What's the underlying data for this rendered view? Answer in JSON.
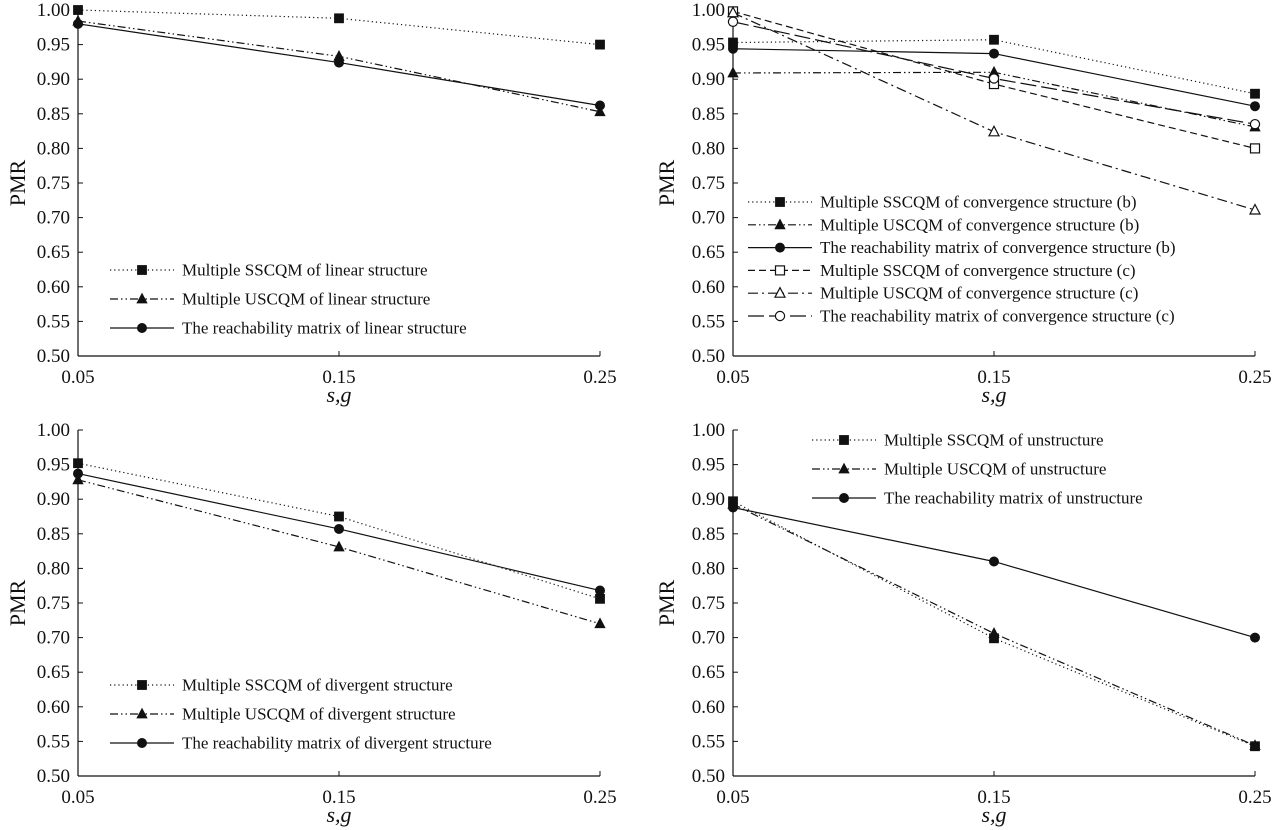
{
  "chart_data": [
    {
      "type": "line",
      "panel": "top-left",
      "xlabel": "s,g",
      "ylabel": "PMR",
      "categories": [
        "0.05",
        "0.15",
        "0.25"
      ],
      "x": [
        0.05,
        0.15,
        0.25
      ],
      "xlim": [
        0.05,
        0.25
      ],
      "ylim": [
        0.5,
        1.0
      ],
      "yticks": [
        "0.50",
        "0.55",
        "0.60",
        "0.65",
        "0.70",
        "0.75",
        "0.80",
        "0.85",
        "0.90",
        "0.95",
        "1.00"
      ],
      "legend_position": "bottom-left",
      "series": [
        {
          "name": "Multiple SSCQM of linear structure",
          "values": [
            1.0,
            0.988,
            0.95
          ],
          "style": "dotted",
          "marker": "square"
        },
        {
          "name": "Multiple USCQM of linear structure",
          "values": [
            0.984,
            0.933,
            0.853
          ],
          "style": "dashdotdot",
          "marker": "triangle"
        },
        {
          "name": "The reachability matrix of linear structure",
          "values": [
            0.98,
            0.924,
            0.862
          ],
          "style": "solid",
          "marker": "circle"
        }
      ]
    },
    {
      "type": "line",
      "panel": "top-right",
      "xlabel": "s,g",
      "ylabel": "PMR",
      "categories": [
        "0.05",
        "0.15",
        "0.25"
      ],
      "x": [
        0.05,
        0.15,
        0.25
      ],
      "xlim": [
        0.05,
        0.25
      ],
      "ylim": [
        0.5,
        1.0
      ],
      "yticks": [
        "0.50",
        "0.55",
        "0.60",
        "0.65",
        "0.70",
        "0.75",
        "0.80",
        "0.85",
        "0.90",
        "0.95",
        "1.00"
      ],
      "legend_position": "bottom-left",
      "series": [
        {
          "name": "Multiple SSCQM of convergence structure (b)",
          "values": [
            0.953,
            0.957,
            0.879
          ],
          "style": "dotted",
          "marker": "square"
        },
        {
          "name": "Multiple USCQM of convergence structure (b)",
          "values": [
            0.909,
            0.91,
            0.831
          ],
          "style": "dashdotdot",
          "marker": "triangle"
        },
        {
          "name": "The reachability matrix of convergence structure (b)",
          "values": [
            0.944,
            0.937,
            0.861
          ],
          "style": "solid",
          "marker": "circle"
        },
        {
          "name": "Multiple SSCQM of convergence structure (c)",
          "values": [
            0.998,
            0.893,
            0.8
          ],
          "style": "dashed",
          "marker": "square-open"
        },
        {
          "name": "Multiple USCQM of convergence structure (c)",
          "values": [
            0.996,
            0.824,
            0.711
          ],
          "style": "dashdot",
          "marker": "triangle-open"
        },
        {
          "name": "The reachability matrix of convergence structure (c)",
          "values": [
            0.983,
            0.901,
            0.835
          ],
          "style": "longdash",
          "marker": "circle-open"
        }
      ]
    },
    {
      "type": "line",
      "panel": "bottom-left",
      "xlabel": "s,g",
      "ylabel": "PMR",
      "categories": [
        "0.05",
        "0.15",
        "0.25"
      ],
      "x": [
        0.05,
        0.15,
        0.25
      ],
      "xlim": [
        0.05,
        0.25
      ],
      "ylim": [
        0.5,
        1.0
      ],
      "yticks": [
        "0.50",
        "0.55",
        "0.60",
        "0.65",
        "0.70",
        "0.75",
        "0.80",
        "0.85",
        "0.90",
        "0.95",
        "1.00"
      ],
      "legend_position": "bottom-left",
      "series": [
        {
          "name": "Multiple SSCQM of divergent structure",
          "values": [
            0.952,
            0.875,
            0.756
          ],
          "style": "dotted",
          "marker": "square"
        },
        {
          "name": "Multiple USCQM of divergent structure",
          "values": [
            0.928,
            0.831,
            0.72
          ],
          "style": "dashdotdot",
          "marker": "triangle"
        },
        {
          "name": "The reachability matrix of divergent structure",
          "values": [
            0.937,
            0.857,
            0.768
          ],
          "style": "solid",
          "marker": "circle"
        }
      ]
    },
    {
      "type": "line",
      "panel": "bottom-right",
      "xlabel": "s,g",
      "ylabel": "PMR",
      "categories": [
        "0.05",
        "0.15",
        "0.25"
      ],
      "x": [
        0.05,
        0.15,
        0.25
      ],
      "xlim": [
        0.05,
        0.25
      ],
      "ylim": [
        0.5,
        1.0
      ],
      "yticks": [
        "0.50",
        "0.55",
        "0.60",
        "0.65",
        "0.70",
        "0.75",
        "0.80",
        "0.85",
        "0.90",
        "0.95",
        "1.00"
      ],
      "legend_position": "top-left",
      "series": [
        {
          "name": "Multiple SSCQM of unstructure",
          "values": [
            0.897,
            0.699,
            0.543
          ],
          "style": "dotted",
          "marker": "square"
        },
        {
          "name": "Multiple USCQM of unstructure",
          "values": [
            0.893,
            0.706,
            0.544
          ],
          "style": "dashdotdot",
          "marker": "triangle"
        },
        {
          "name": "The reachability matrix of unstructure",
          "values": [
            0.888,
            0.81,
            0.7
          ],
          "style": "solid",
          "marker": "circle"
        }
      ]
    }
  ]
}
